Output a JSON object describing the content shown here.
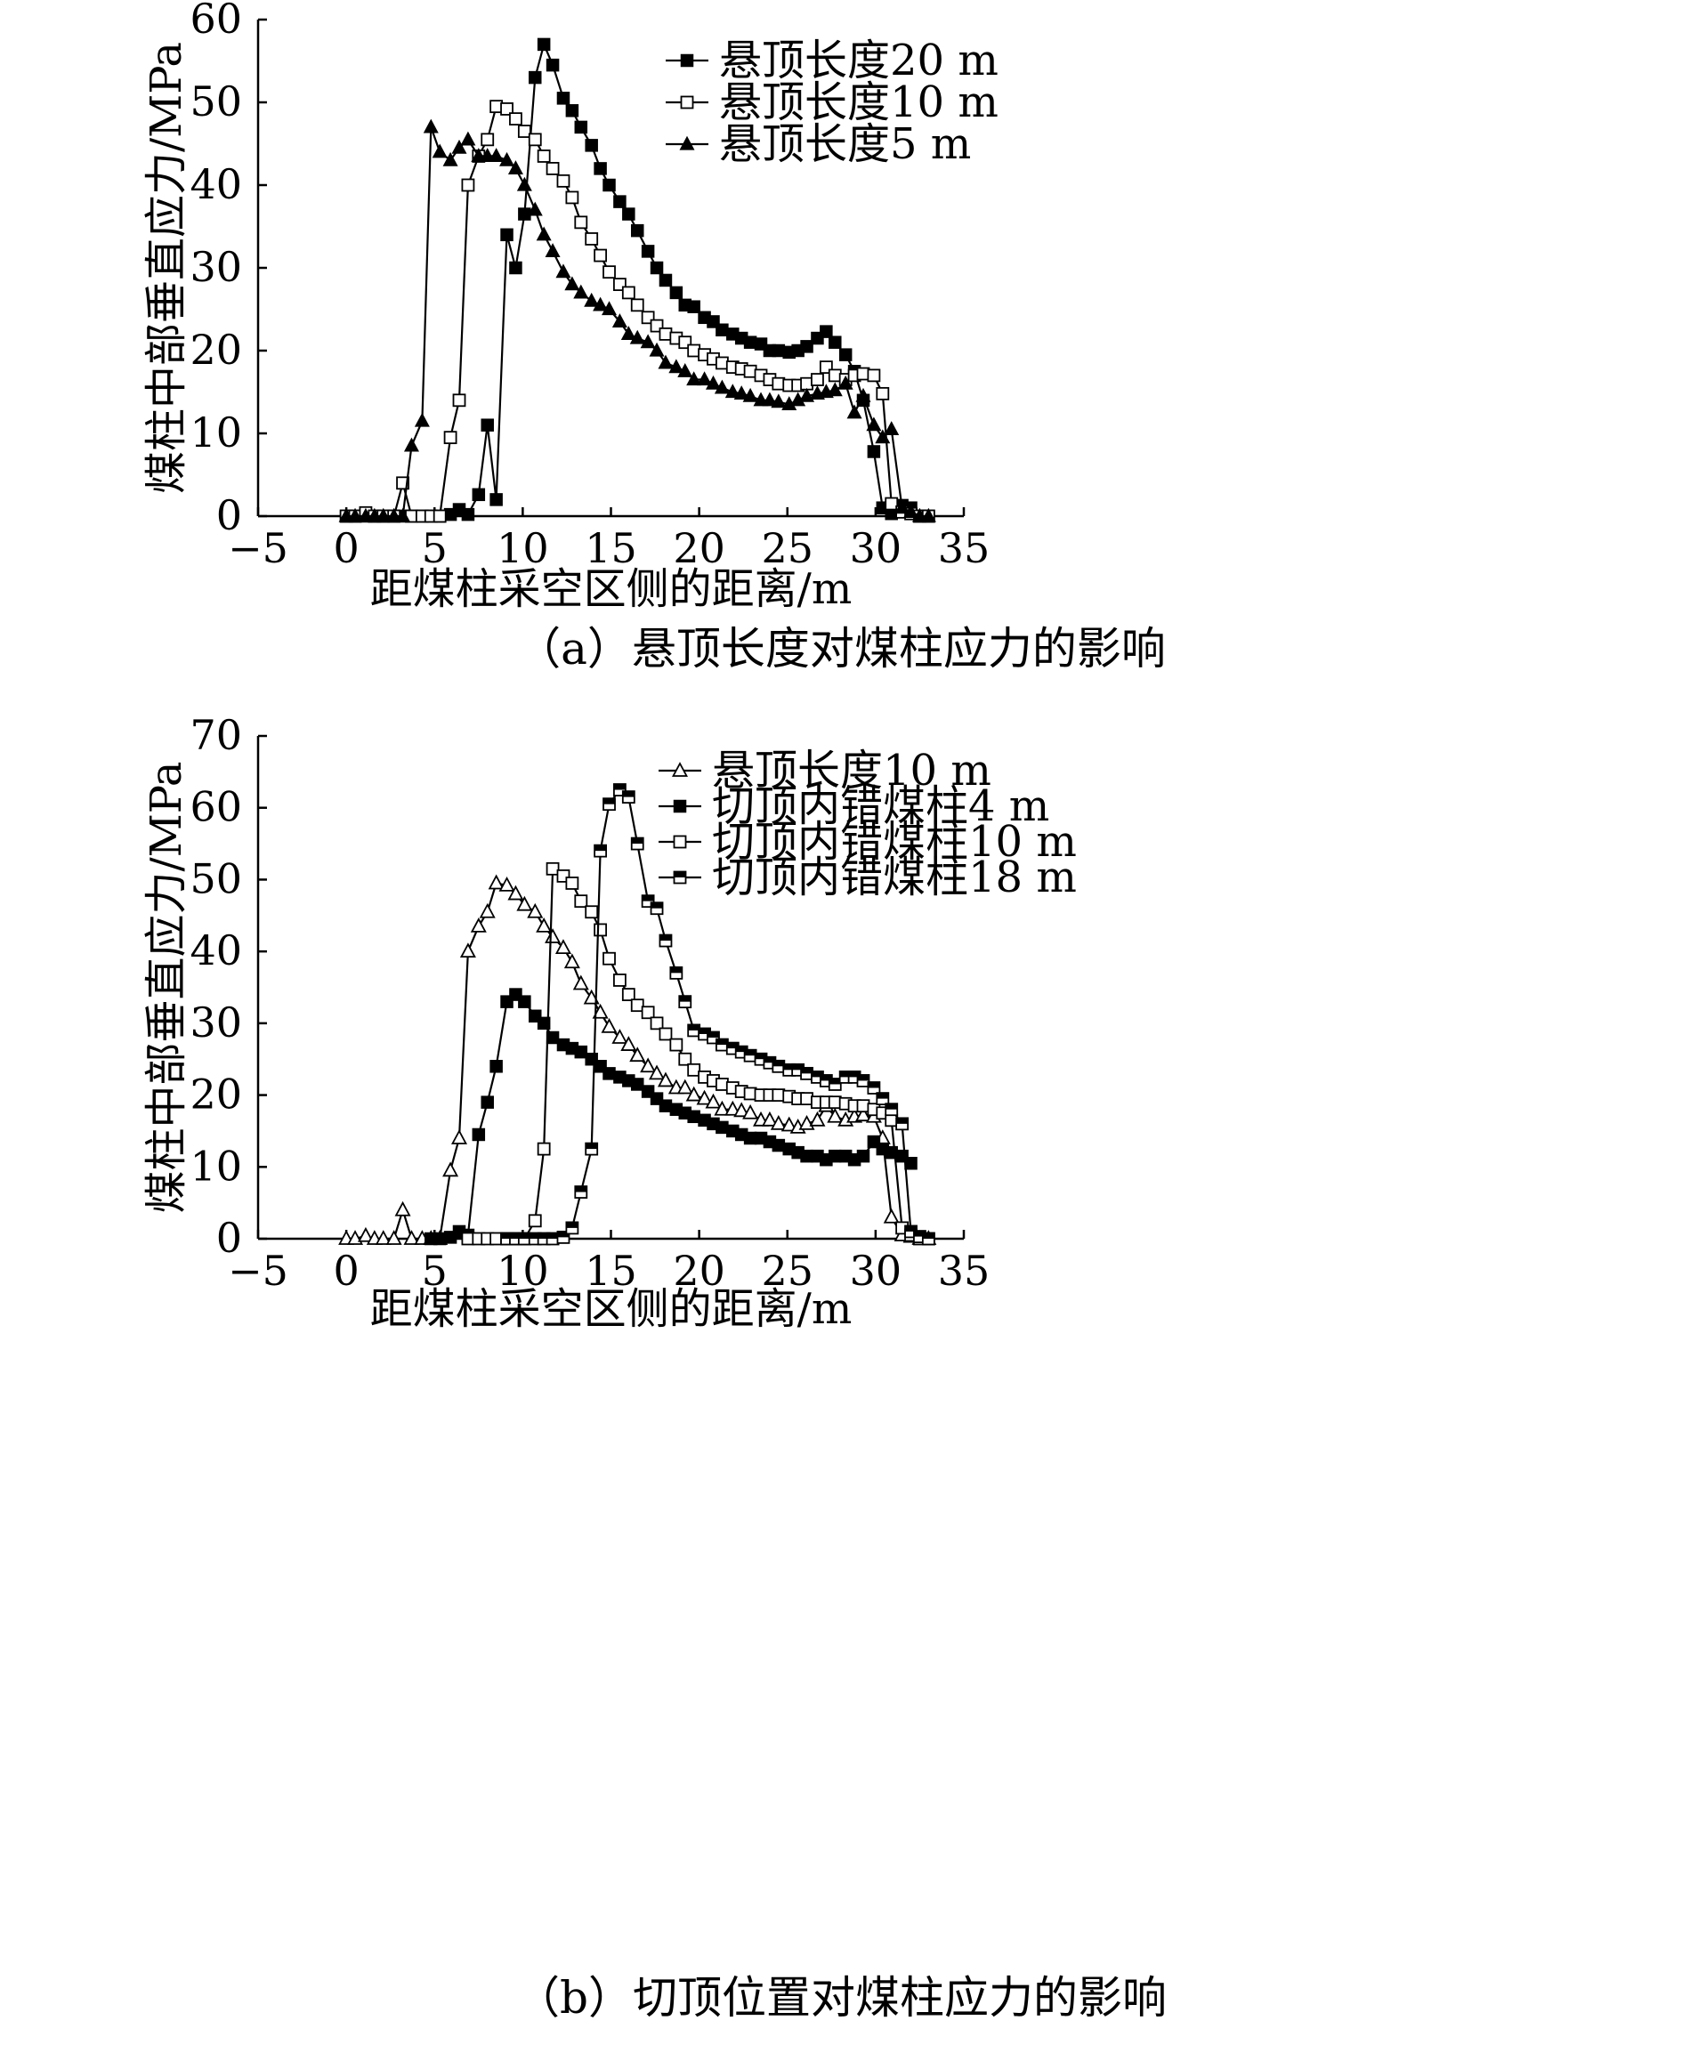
{
  "chart_data": [
    {
      "type": "line",
      "caption": "（a）悬顶长度对煤柱应力的影响",
      "xlabel": "距煤柱采空区侧的距离/m",
      "ylabel": "煤柱中部垂直应力/MPa",
      "xlim": [
        -5,
        35
      ],
      "ylim": [
        0,
        60
      ],
      "xticks": [
        -5,
        0,
        5,
        10,
        15,
        20,
        25,
        30,
        35
      ],
      "yticks": [
        0,
        10,
        20,
        30,
        40,
        50,
        60
      ],
      "xtick_labels": [
        "−5",
        "0",
        "5",
        "10",
        "15",
        "20",
        "25",
        "30",
        "35"
      ],
      "ytick_labels": [
        "0",
        "10",
        "20",
        "30",
        "40",
        "50",
        "60"
      ],
      "grid": false,
      "legend_position": "top-right",
      "series": [
        {
          "name": "悬顶长度20 m",
          "marker": "filled-square",
          "x": [
            0,
            0.5,
            1.1,
            1.6,
            2.1,
            2.7,
            3.2,
            3.7,
            4.3,
            4.8,
            5.3,
            5.9,
            6.4,
            6.9,
            7.5,
            8.0,
            8.5,
            9.1,
            9.6,
            10.1,
            10.7,
            11.2,
            11.7,
            12.3,
            12.8,
            13.3,
            13.9,
            14.4,
            14.9,
            15.5,
            16.0,
            16.5,
            17.1,
            17.6,
            18.1,
            18.7,
            19.2,
            19.7,
            20.3,
            20.8,
            21.3,
            21.9,
            22.4,
            22.9,
            23.5,
            24.0,
            24.5,
            25.1,
            25.6,
            26.1,
            26.7,
            27.2,
            27.7,
            28.3,
            28.8,
            29.3,
            29.9,
            30.4,
            30.9,
            31.5,
            32.0,
            32.5,
            33.0
          ],
          "y": [
            0,
            0,
            0,
            0,
            0,
            0,
            0,
            0,
            0,
            0,
            0,
            0.2,
            0.8,
            0.2,
            2.6,
            11.0,
            2.0,
            34.0,
            30.0,
            36.5,
            53.0,
            57.0,
            54.5,
            50.5,
            49.0,
            47.0,
            44.8,
            42.0,
            40.0,
            38.0,
            36.5,
            34.5,
            32.0,
            30.0,
            28.5,
            27.0,
            25.5,
            25.3,
            24.0,
            23.5,
            22.5,
            22.0,
            21.5,
            21.0,
            20.8,
            20.0,
            20.0,
            19.8,
            20.0,
            20.5,
            21.5,
            22.3,
            21.0,
            19.5,
            17.5,
            14.0,
            7.8,
            1.0,
            0.3,
            1.3,
            1.0,
            0,
            0
          ]
        },
        {
          "name": "悬顶长度10 m",
          "marker": "open-square",
          "x": [
            0,
            0.5,
            1.1,
            1.6,
            2.1,
            2.7,
            3.2,
            3.7,
            4.3,
            4.8,
            5.3,
            5.9,
            6.4,
            6.9,
            7.5,
            8.0,
            8.5,
            9.1,
            9.6,
            10.1,
            10.7,
            11.2,
            11.7,
            12.3,
            12.8,
            13.3,
            13.9,
            14.4,
            14.9,
            15.5,
            16.0,
            16.5,
            17.1,
            17.6,
            18.1,
            18.7,
            19.2,
            19.7,
            20.3,
            20.8,
            21.3,
            21.9,
            22.4,
            22.9,
            23.5,
            24.0,
            24.5,
            25.1,
            25.6,
            26.1,
            26.7,
            27.2,
            27.7,
            28.3,
            28.8,
            29.3,
            29.9,
            30.4,
            30.9,
            31.5,
            32.0,
            32.5,
            33.0
          ],
          "y": [
            0,
            0,
            0.4,
            0,
            0,
            0,
            4.0,
            0,
            0,
            0,
            0,
            9.5,
            14.0,
            40.0,
            43.5,
            45.5,
            49.5,
            49.2,
            48.0,
            46.5,
            45.5,
            43.5,
            42.0,
            40.5,
            38.5,
            35.5,
            33.5,
            31.5,
            29.5,
            28.0,
            27.0,
            25.5,
            24.0,
            23.0,
            22.0,
            21.5,
            21.0,
            20.0,
            19.5,
            19.0,
            18.5,
            18.0,
            17.8,
            17.5,
            17.0,
            16.5,
            16.0,
            15.8,
            15.8,
            16.0,
            16.5,
            18.0,
            17.0,
            16.5,
            17.0,
            17.2,
            17.0,
            14.8,
            1.5,
            0.5,
            0.3,
            0,
            0
          ]
        },
        {
          "name": "悬顶长度5 m",
          "marker": "filled-triangle",
          "x": [
            0,
            0.5,
            1.1,
            1.6,
            2.1,
            2.7,
            3.2,
            3.7,
            4.3,
            4.8,
            5.3,
            5.9,
            6.4,
            6.9,
            7.5,
            8.0,
            8.5,
            9.1,
            9.6,
            10.1,
            10.7,
            11.2,
            11.7,
            12.3,
            12.8,
            13.3,
            13.9,
            14.4,
            14.9,
            15.5,
            16.0,
            16.5,
            17.1,
            17.6,
            18.1,
            18.7,
            19.2,
            19.7,
            20.3,
            20.8,
            21.3,
            21.9,
            22.4,
            22.9,
            23.5,
            24.0,
            24.5,
            25.1,
            25.6,
            26.1,
            26.7,
            27.2,
            27.7,
            28.3,
            28.8,
            29.3,
            29.9,
            30.4,
            30.9,
            31.5,
            32.0,
            32.5,
            33.0
          ],
          "y": [
            0,
            0,
            0,
            0,
            0,
            0,
            0,
            8.5,
            11.5,
            47.0,
            44.0,
            43.0,
            44.5,
            45.5,
            43.5,
            43.5,
            43.5,
            43.0,
            42.0,
            40.0,
            37.0,
            34.0,
            32.0,
            29.5,
            28.0,
            27.0,
            26.0,
            25.5,
            25.0,
            23.5,
            22.0,
            21.5,
            21.0,
            20.0,
            18.5,
            18.0,
            17.5,
            16.5,
            16.5,
            16.0,
            15.5,
            15.0,
            14.8,
            14.5,
            14.0,
            14.0,
            13.8,
            13.5,
            14.0,
            14.5,
            14.8,
            15.0,
            15.2,
            16.0,
            12.5,
            14.5,
            11.0,
            9.5,
            10.5,
            1.0,
            0.5,
            0,
            0
          ]
        }
      ]
    },
    {
      "type": "line",
      "caption": "（b）切顶位置对煤柱应力的影响",
      "xlabel": "距煤柱采空区侧的距离/m",
      "ylabel": "煤柱中部垂直应力/MPa",
      "xlim": [
        -5,
        35
      ],
      "ylim": [
        0,
        70
      ],
      "xticks": [
        -5,
        0,
        5,
        10,
        15,
        20,
        25,
        30,
        35
      ],
      "yticks": [
        0,
        10,
        20,
        30,
        40,
        50,
        60,
        70
      ],
      "xtick_labels": [
        "−5",
        "0",
        "5",
        "10",
        "15",
        "20",
        "25",
        "30",
        "35"
      ],
      "ytick_labels": [
        "0",
        "10",
        "20",
        "30",
        "40",
        "50",
        "60",
        "70"
      ],
      "grid": false,
      "legend_position": "top-right",
      "series": [
        {
          "name": "悬顶长度10 m",
          "marker": "open-triangle",
          "x": [
            0,
            0.5,
            1.1,
            1.6,
            2.1,
            2.7,
            3.2,
            3.7,
            4.3,
            4.8,
            5.3,
            5.9,
            6.4,
            6.9,
            7.5,
            8.0,
            8.5,
            9.1,
            9.6,
            10.1,
            10.7,
            11.2,
            11.7,
            12.3,
            12.8,
            13.3,
            13.9,
            14.4,
            14.9,
            15.5,
            16.0,
            16.5,
            17.1,
            17.6,
            18.1,
            18.7,
            19.2,
            19.7,
            20.3,
            20.8,
            21.3,
            21.9,
            22.4,
            22.9,
            23.5,
            24.0,
            24.5,
            25.1,
            25.6,
            26.1,
            26.7,
            27.2,
            27.7,
            28.3,
            28.8,
            29.3,
            29.9,
            30.4,
            30.9,
            31.5,
            32.0,
            32.5,
            33.0
          ],
          "y": [
            0,
            0,
            0.4,
            0,
            0,
            0,
            4.0,
            0,
            0,
            0,
            0,
            9.5,
            14.0,
            40.0,
            43.5,
            45.5,
            49.5,
            49.2,
            48.0,
            46.5,
            45.5,
            43.5,
            42.0,
            40.5,
            38.5,
            35.5,
            33.5,
            31.5,
            29.5,
            28.0,
            27.0,
            25.5,
            24.0,
            23.0,
            22.0,
            21.0,
            21.0,
            20.0,
            19.5,
            19.0,
            18.0,
            18.0,
            17.8,
            17.5,
            16.5,
            16.5,
            16.0,
            15.8,
            15.5,
            16.0,
            16.5,
            18.5,
            17.0,
            16.5,
            17.0,
            17.2,
            17.0,
            14.0,
            3.0,
            0.5,
            0.3,
            0,
            0
          ]
        },
        {
          "name": "切顶内错煤柱4 m",
          "marker": "filled-square",
          "x": [
            4.8,
            5.3,
            5.9,
            6.4,
            6.9,
            7.5,
            8.0,
            8.5,
            9.1,
            9.6,
            10.1,
            10.7,
            11.2,
            11.7,
            12.3,
            12.8,
            13.3,
            13.9,
            14.4,
            14.9,
            15.5,
            16.0,
            16.5,
            17.1,
            17.6,
            18.1,
            18.7,
            19.2,
            19.7,
            20.3,
            20.8,
            21.3,
            21.9,
            22.4,
            22.9,
            23.5,
            24.0,
            24.5,
            25.1,
            25.6,
            26.1,
            26.7,
            27.2,
            27.7,
            28.3,
            28.8,
            29.3,
            29.9,
            30.4,
            30.9,
            31.5,
            32.0
          ],
          "y": [
            0,
            0,
            0.2,
            1.0,
            0.5,
            14.5,
            19.0,
            24.0,
            33.0,
            34.0,
            33.0,
            31.0,
            30.0,
            28.0,
            27.0,
            26.5,
            26.0,
            25.0,
            24.0,
            23.0,
            22.5,
            22.0,
            21.5,
            20.5,
            19.5,
            18.5,
            18.0,
            17.5,
            17.0,
            16.5,
            16.0,
            15.5,
            15.0,
            14.5,
            14.0,
            14.0,
            13.5,
            13.0,
            12.5,
            12.0,
            11.5,
            11.5,
            11.0,
            11.5,
            11.5,
            11.0,
            11.5,
            13.5,
            12.5,
            12.0,
            11.5,
            10.5
          ]
        },
        {
          "name": "切顶内错煤柱10 m",
          "marker": "open-square",
          "x": [
            6.9,
            7.5,
            8.0,
            8.5,
            9.1,
            9.6,
            10.1,
            10.7,
            11.2,
            11.7,
            12.3,
            12.8,
            13.3,
            13.9,
            14.4,
            14.9,
            15.5,
            16.0,
            16.5,
            17.1,
            17.6,
            18.1,
            18.7,
            19.2,
            19.7,
            20.3,
            20.8,
            21.3,
            21.9,
            22.4,
            22.9,
            23.5,
            24.0,
            24.5,
            25.1,
            25.6,
            26.1,
            26.7,
            27.2,
            27.7,
            28.3,
            28.8,
            29.3,
            29.9,
            30.4,
            30.9,
            31.5,
            32.0,
            32.5,
            33.0
          ],
          "y": [
            0,
            0,
            0,
            0,
            0,
            0,
            0,
            2.5,
            12.5,
            51.5,
            50.5,
            49.5,
            47.0,
            45.5,
            43.0,
            39.0,
            36.0,
            34.0,
            32.5,
            31.5,
            30.0,
            28.5,
            27.0,
            25.0,
            23.5,
            22.5,
            22.0,
            21.5,
            21.0,
            20.5,
            20.2,
            20.0,
            20.0,
            20.0,
            19.8,
            19.5,
            19.5,
            19.0,
            19.0,
            19.0,
            18.8,
            18.5,
            18.5,
            18.0,
            17.5,
            16.5,
            1.5,
            0.5,
            0,
            0
          ]
        },
        {
          "name": "切顶内错煤柱18 m",
          "marker": "half-square",
          "x": [
            9.1,
            9.6,
            10.1,
            10.7,
            11.2,
            11.7,
            12.3,
            12.8,
            13.3,
            13.9,
            14.4,
            14.9,
            15.5,
            16.0,
            16.5,
            17.1,
            17.6,
            18.1,
            18.7,
            19.2,
            19.7,
            20.3,
            20.8,
            21.3,
            21.9,
            22.4,
            22.9,
            23.5,
            24.0,
            24.5,
            25.1,
            25.6,
            26.1,
            26.7,
            27.2,
            27.7,
            28.3,
            28.8,
            29.3,
            29.9,
            30.4,
            30.9,
            31.5,
            32.0,
            32.5,
            33.0
          ],
          "y": [
            0,
            0,
            0,
            0,
            0,
            0,
            0.2,
            1.5,
            6.5,
            12.5,
            54.0,
            60.5,
            62.5,
            61.5,
            55.0,
            47.0,
            46.0,
            41.5,
            37.0,
            33.0,
            29.0,
            28.5,
            28.0,
            27.0,
            26.5,
            26.0,
            25.5,
            25.0,
            24.5,
            24.0,
            23.5,
            23.5,
            23.0,
            22.5,
            22.0,
            21.5,
            22.5,
            22.5,
            22.0,
            21.0,
            19.5,
            18.0,
            16.0,
            1.0,
            0.3,
            0
          ]
        }
      ]
    }
  ]
}
